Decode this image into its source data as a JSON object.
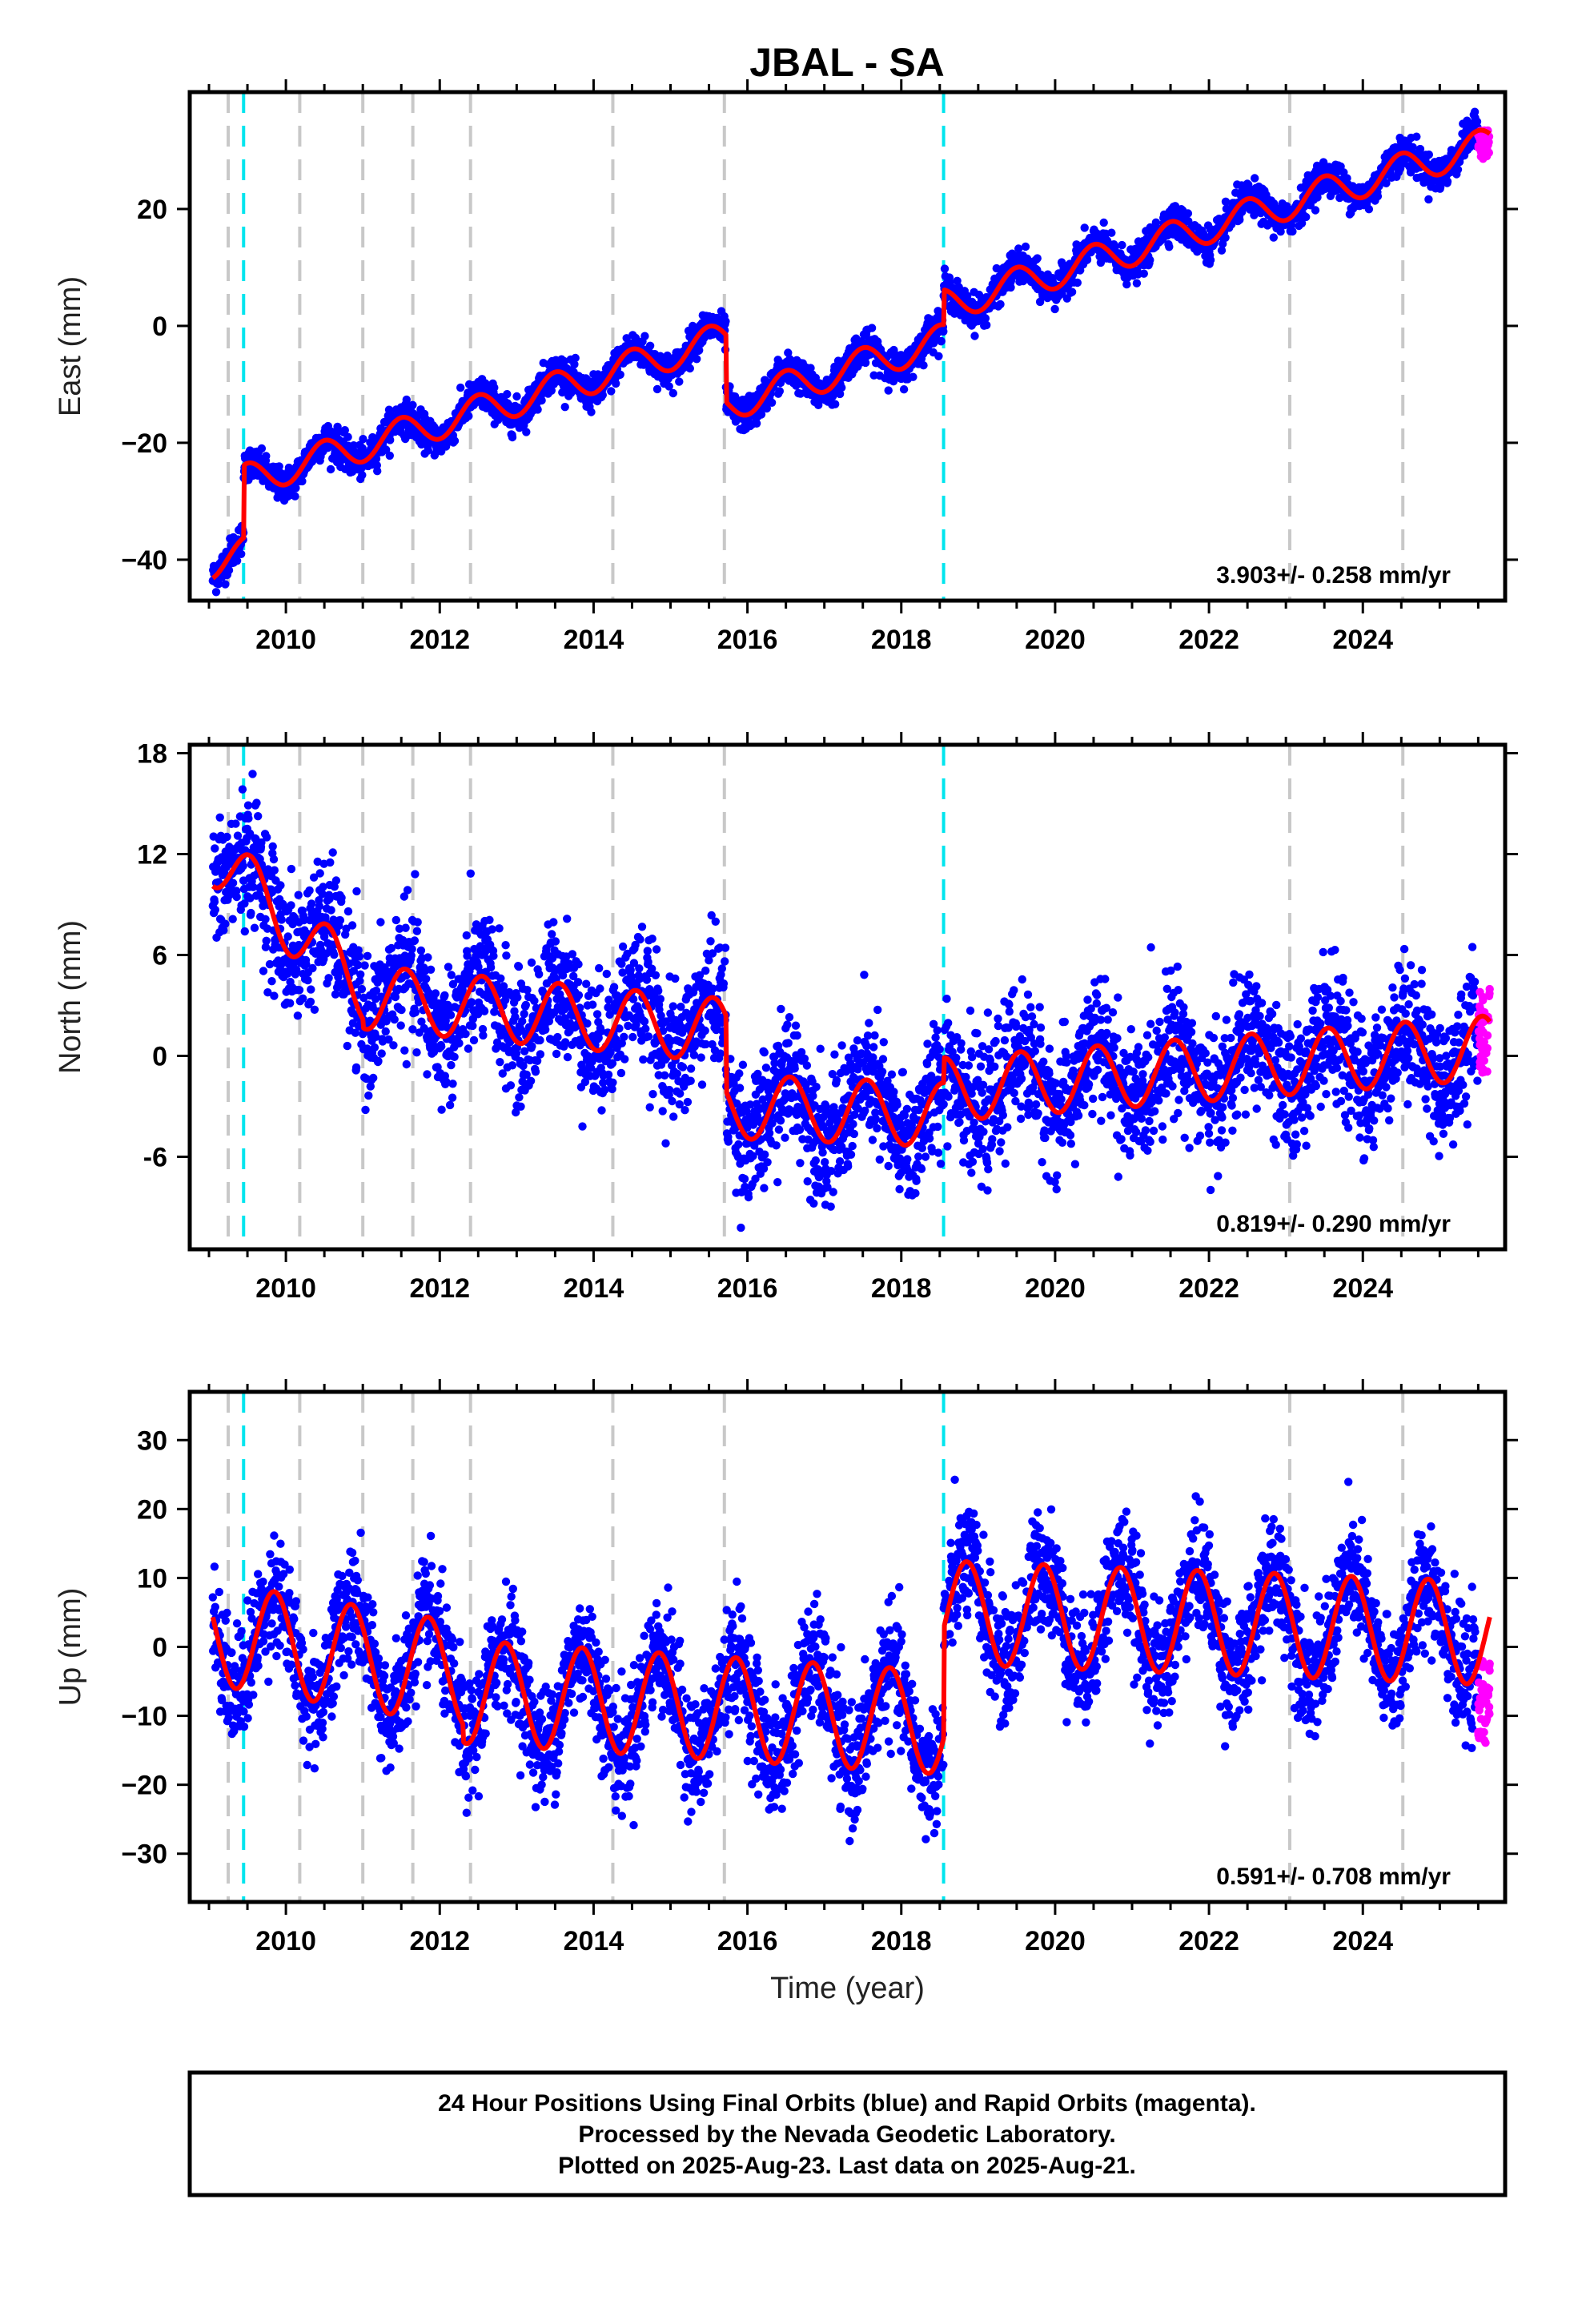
{
  "title": "JBAL - SA",
  "footer": {
    "lines": [
      "24 Hour Positions Using Final Orbits (blue) and Rapid Orbits (magenta).",
      "Processed by the Nevada Geodetic Laboratory.",
      "Plotted on 2025-Aug-23. Last data on 2025-Aug-21."
    ]
  },
  "colors": {
    "final_orbits": "#0000ff",
    "rapid_orbits": "#ff00ff",
    "model_fit": "#ff0000",
    "equipment_change": "#c8c8c8",
    "earthquake": "#00e5ee"
  },
  "chart_data": [
    {
      "type": "scatter",
      "component": "east",
      "title": "JBAL - SA",
      "xlabel": "",
      "ylabel": "East (mm)",
      "xlim": [
        2008.75,
        2025.85
      ],
      "ylim": [
        -47,
        40
      ],
      "xticks": [
        2010,
        2012,
        2014,
        2016,
        2018,
        2020,
        2022,
        2024
      ],
      "yticks": [
        -40,
        -20,
        0,
        20
      ],
      "ytick_labels": [
        "−40",
        "−20",
        "0",
        "20"
      ],
      "rate": "3.903+/- 0.258 mm/yr",
      "grid": false,
      "model": {
        "slope_mm_per_yr": 3.903,
        "segments": [
          {
            "start": 2009.05,
            "end": 2009.45,
            "offset_at_start": -40.5
          },
          {
            "start": 2009.45,
            "end": 2015.72,
            "offset_at_start": -26.5
          },
          {
            "start": 2015.72,
            "end": 2018.55,
            "offset_at_start": -13.5
          },
          {
            "start": 2018.55,
            "end": 2025.65,
            "offset_at_start": 3.5
          }
        ],
        "annual_amplitude": 2.8,
        "annual_phase_peak": 0.5
      },
      "scatter_noise_mm": 1.4,
      "rapid_points": {
        "start": 2025.5,
        "end": 2025.65,
        "center": 31,
        "spread": 5
      }
    },
    {
      "type": "scatter",
      "component": "north",
      "xlabel": "",
      "ylabel": "North (mm)",
      "xlim": [
        2008.75,
        2025.85
      ],
      "ylim": [
        -11.5,
        18.5
      ],
      "xticks": [
        2010,
        2012,
        2014,
        2016,
        2018,
        2020,
        2022,
        2024
      ],
      "yticks": [
        -6,
        0,
        6,
        12,
        18
      ],
      "ytick_labels": [
        "-6",
        "0",
        "6",
        "12",
        "18"
      ],
      "rate": "0.819+/- 0.290 mm/yr",
      "grid": false,
      "model": {
        "segments": [
          {
            "start": 2009.05,
            "end": 2011.0,
            "level_start": 12.0,
            "level_end": 4.0
          },
          {
            "start": 2011.0,
            "end": 2015.72,
            "level_start": 3.5,
            "level_end": 1.5
          },
          {
            "start": 2015.72,
            "end": 2018.55,
            "level_start": -3.0,
            "level_end": -3.5
          },
          {
            "start": 2018.55,
            "end": 2025.65,
            "level_start": -2.0,
            "level_end": 0.5
          }
        ],
        "annual_amplitude": 1.9,
        "annual_phase_peak": 0.55
      },
      "scatter_noise_mm": 1.9,
      "rapid_points": {
        "start": 2025.5,
        "end": 2025.65,
        "center": 1.5,
        "spread": 5
      }
    },
    {
      "type": "scatter",
      "component": "up",
      "xlabel": "Time (year)",
      "ylabel": "Up (mm)",
      "xlim": [
        2008.75,
        2025.85
      ],
      "ylim": [
        -37,
        37
      ],
      "xticks": [
        2010,
        2012,
        2014,
        2016,
        2018,
        2020,
        2022,
        2024
      ],
      "yticks": [
        -30,
        -20,
        -10,
        0,
        10,
        20,
        30
      ],
      "ytick_labels": [
        "−30",
        "−20",
        "−10",
        "0",
        "10",
        "20",
        "30"
      ],
      "rate": "0.591+/- 0.708 mm/yr",
      "grid": false,
      "model": {
        "segments": [
          {
            "start": 2009.05,
            "end": 2012.3,
            "level_start": 2.0,
            "level_end": -4.0
          },
          {
            "start": 2012.3,
            "end": 2018.55,
            "level_start": -6.5,
            "level_end": -11.0
          },
          {
            "start": 2018.55,
            "end": 2025.65,
            "level_start": 5.0,
            "level_end": 2.0
          }
        ],
        "annual_amplitude": 7.5,
        "annual_phase_peak": 0.85
      },
      "scatter_noise_mm": 4.2,
      "rapid_points": {
        "start": 2025.5,
        "end": 2025.65,
        "center": -8,
        "spread": 12
      }
    }
  ],
  "event_lines": {
    "equipment_change": [
      2009.25,
      2010.18,
      2011.0,
      2011.65,
      2012.4,
      2014.25,
      2015.7,
      2023.05,
      2024.52
    ],
    "earthquake": [
      2009.45,
      2018.55
    ]
  }
}
